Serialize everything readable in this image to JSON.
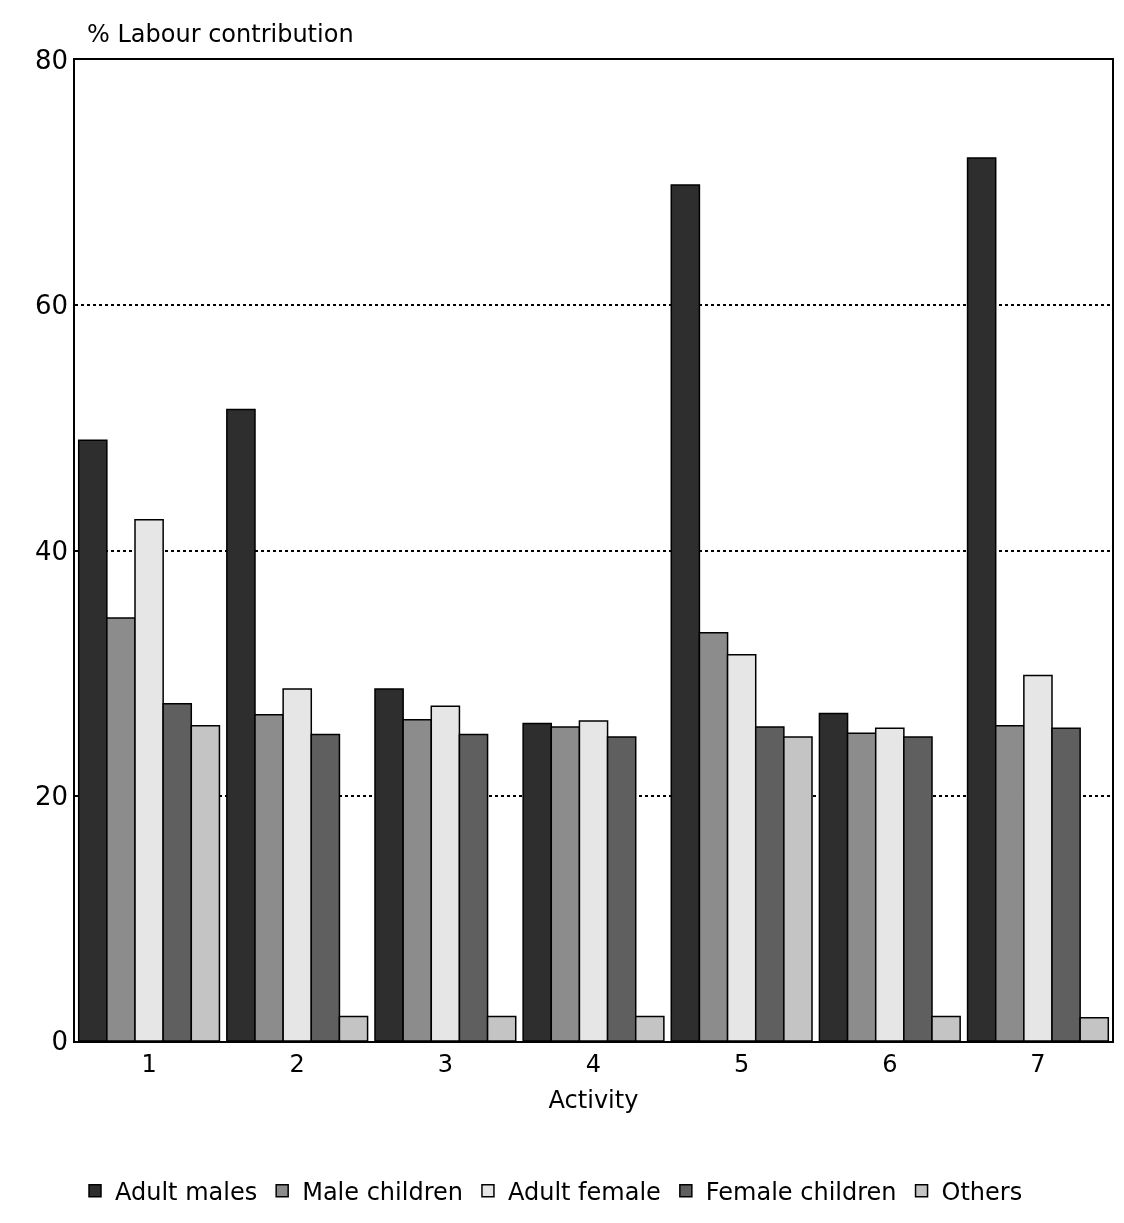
{
  "chart_data": {
    "type": "bar",
    "xlabel": "Activity",
    "ylabel": "% Labour contribution",
    "categories": [
      "1",
      "2",
      "3",
      "4",
      "5",
      "6",
      "7"
    ],
    "series": [
      {
        "name": "Adult males",
        "color": "#2e2e2e",
        "values": [
          49,
          51.5,
          28.7,
          25.9,
          69.8,
          26.7,
          72
        ]
      },
      {
        "name": "Male children",
        "color": "#8c8c8c",
        "values": [
          34.5,
          26.6,
          26.2,
          25.6,
          33.3,
          25.1,
          25.7
        ]
      },
      {
        "name": "Adult female",
        "color": "#e6e6e6",
        "values": [
          42.5,
          28.7,
          27.3,
          26.1,
          31.5,
          25.5,
          29.8
        ]
      },
      {
        "name": "Female children",
        "color": "#5f5f5f",
        "values": [
          27.5,
          25,
          25,
          24.8,
          25.6,
          24.8,
          25.5
        ]
      },
      {
        "name": "Others",
        "color": "#c4c4c4",
        "values": [
          25.7,
          2,
          2,
          2,
          24.8,
          2,
          1.9
        ]
      }
    ],
    "ylim": [
      0,
      80
    ],
    "yticks": [
      0,
      20,
      40,
      60,
      80
    ],
    "grid": "y",
    "legend": "bottom"
  }
}
